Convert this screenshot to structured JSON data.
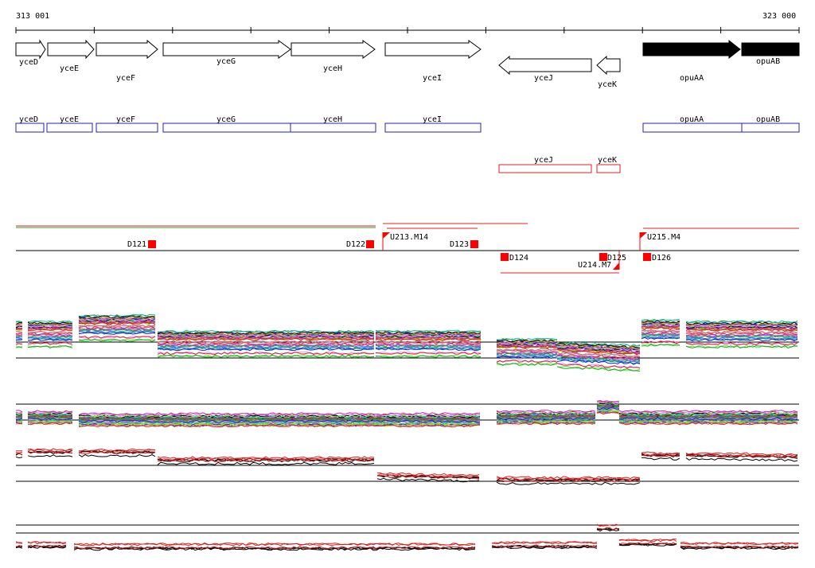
{
  "ruler": {
    "start_label": "313 001",
    "end_label": "323 000"
  },
  "genes": [
    {
      "name": "yceD",
      "strand": "+",
      "filled": false
    },
    {
      "name": "yceE",
      "strand": "+",
      "filled": false
    },
    {
      "name": "yceF",
      "strand": "+",
      "filled": false
    },
    {
      "name": "yceG",
      "strand": "+",
      "filled": false
    },
    {
      "name": "yceH",
      "strand": "+",
      "filled": false
    },
    {
      "name": "yceI",
      "strand": "+",
      "filled": false
    },
    {
      "name": "yceJ",
      "strand": "-",
      "filled": false
    },
    {
      "name": "yceK",
      "strand": "-",
      "filled": false
    },
    {
      "name": "opuAA",
      "strand": "+",
      "filled": true
    },
    {
      "name": "opuAB",
      "strand": "+",
      "filled": true
    }
  ],
  "features_forward": [
    "yceD",
    "yceE",
    "yceF",
    "yceG",
    "yceH",
    "yceI",
    "opuAA",
    "opuAB"
  ],
  "features_reverse": [
    "yceJ",
    "yceK"
  ],
  "segment_labels": {
    "D121": "D121",
    "D122": "D122",
    "D123": "D123",
    "D124": "D124",
    "D125": "D125",
    "D126": "D126",
    "U213": "U213.M14",
    "U214": "U214.M7",
    "U215": "U215.M4"
  },
  "colors": {
    "feature_forward": "#2020c0",
    "feature_reverse": "#e02020",
    "marker": "#ff0000",
    "axis": "#000000"
  }
}
